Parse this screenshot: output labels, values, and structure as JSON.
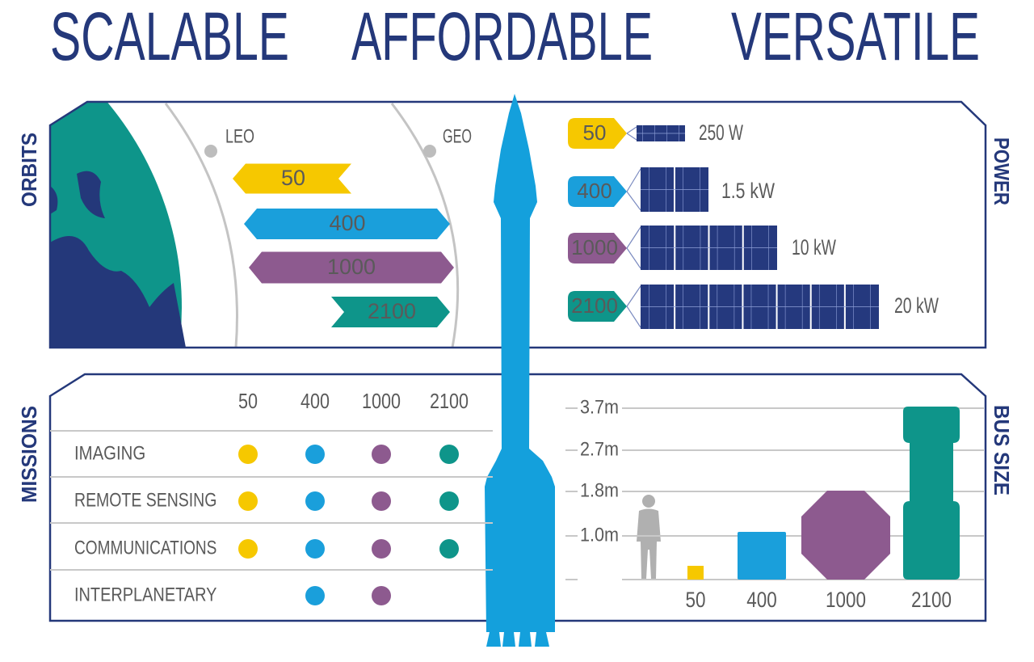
{
  "header": {
    "words": [
      "SCALABLE",
      "AFFORDABLE",
      "VERSATILE"
    ]
  },
  "colors": [
    "#f6c800",
    "#1a9fdb",
    "#8d5a8f",
    "#0e958a"
  ],
  "orbits": {
    "label": "ORBITS",
    "markers": [
      "LEO",
      "GEO"
    ],
    "buses": [
      "50",
      "400",
      "1000",
      "2100"
    ]
  },
  "power": {
    "label": "POWER",
    "rows": [
      {
        "bus": "50",
        "power": "250 W"
      },
      {
        "bus": "400",
        "power": "1.5 kW"
      },
      {
        "bus": "1000",
        "power": "10 kW"
      },
      {
        "bus": "2100",
        "power": "20 kW"
      }
    ]
  },
  "missions": {
    "label": "MISSIONS",
    "columns": [
      "50",
      "400",
      "1000",
      "2100"
    ],
    "rows": [
      {
        "name": "IMAGING",
        "supported": [
          true,
          true,
          true,
          true
        ]
      },
      {
        "name": "REMOTE SENSING",
        "supported": [
          true,
          true,
          true,
          true
        ]
      },
      {
        "name": "COMMUNICATIONS",
        "supported": [
          true,
          true,
          true,
          true
        ]
      },
      {
        "name": "INTERPLANETARY",
        "supported": [
          false,
          true,
          true,
          false
        ]
      }
    ]
  },
  "bus_size": {
    "label": "BUS SIZE",
    "ticks": [
      "3.7m",
      "2.7m",
      "1.8m",
      "1.0m"
    ],
    "buses": [
      "50",
      "400",
      "1000",
      "2100"
    ]
  }
}
